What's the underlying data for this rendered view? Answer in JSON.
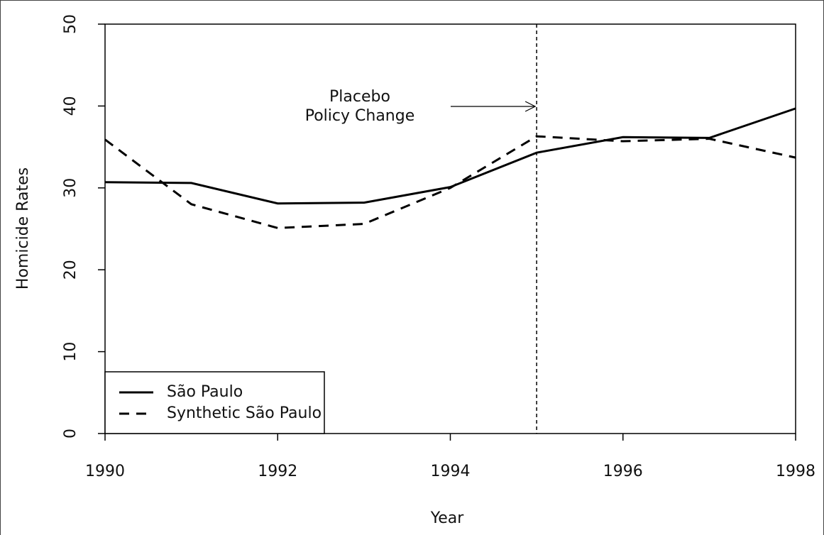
{
  "chart_data": {
    "type": "line",
    "x": [
      1990,
      1991,
      1992,
      1993,
      1994,
      1995,
      1996,
      1997,
      1998
    ],
    "series": [
      {
        "name": "São Paulo",
        "color": "#000000",
        "dash": "solid",
        "values": [
          30.7,
          30.6,
          28.1,
          28.2,
          30.1,
          34.3,
          36.2,
          36.1,
          39.7
        ]
      },
      {
        "name": "Synthetic São Paulo",
        "color": "#000000",
        "dash": "dashed",
        "values": [
          35.9,
          28.0,
          25.1,
          25.6,
          30.0,
          36.3,
          35.7,
          36.0,
          33.7
        ]
      }
    ],
    "xlim": [
      1990,
      1998
    ],
    "xticks": [
      1990,
      1992,
      1994,
      1996,
      1998
    ],
    "ylim": [
      0,
      50
    ],
    "yticks": [
      0,
      10,
      20,
      30,
      40,
      50
    ],
    "xlabel": "Year",
    "ylabel": "Homicide Rates",
    "vline": 1995,
    "annotation": [
      "Placebo",
      "Policy Change"
    ],
    "legend": "bottom-left"
  }
}
